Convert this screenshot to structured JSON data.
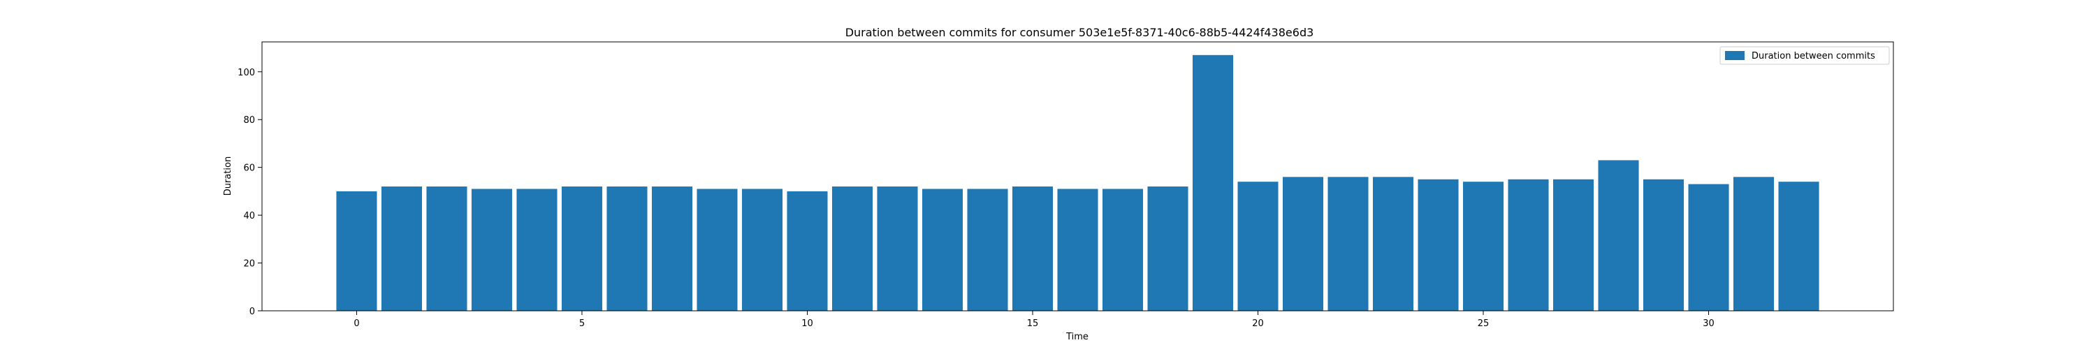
{
  "chart_data": {
    "type": "bar",
    "title": "Duration between commits for consumer 503e1e5f-8371-40c6-88b5-4424f438e6d3",
    "xlabel": "Time",
    "ylabel": "Duration",
    "x": [
      0,
      1,
      2,
      3,
      4,
      5,
      6,
      7,
      8,
      9,
      10,
      11,
      12,
      13,
      14,
      15,
      16,
      17,
      18,
      19,
      20,
      21,
      22,
      23,
      24,
      25,
      26,
      27,
      28,
      29,
      30,
      31,
      32
    ],
    "values": [
      50,
      52,
      52,
      51,
      51,
      52,
      52,
      52,
      51,
      51,
      50,
      52,
      52,
      51,
      51,
      52,
      51,
      51,
      52,
      107,
      54,
      56,
      56,
      56,
      55,
      54,
      55,
      55,
      63,
      55,
      53,
      56,
      54
    ],
    "xlim": [
      -2.1,
      34.1
    ],
    "ylim": [
      0,
      112.5
    ],
    "xticks": [
      0,
      5,
      10,
      15,
      20,
      25,
      30
    ],
    "xtick_labels": [
      "0",
      "5",
      "10",
      "15",
      "20",
      "25",
      "30"
    ],
    "yticks": [
      0,
      20,
      40,
      60,
      80,
      100
    ],
    "ytick_labels": [
      "0",
      "20",
      "40",
      "60",
      "80",
      "100"
    ],
    "grid": false,
    "legend": {
      "position": "top-right",
      "entries": [
        {
          "label": "Duration between commits",
          "color": "#1f77b4"
        }
      ]
    },
    "bar_color": "#1f77b4"
  }
}
